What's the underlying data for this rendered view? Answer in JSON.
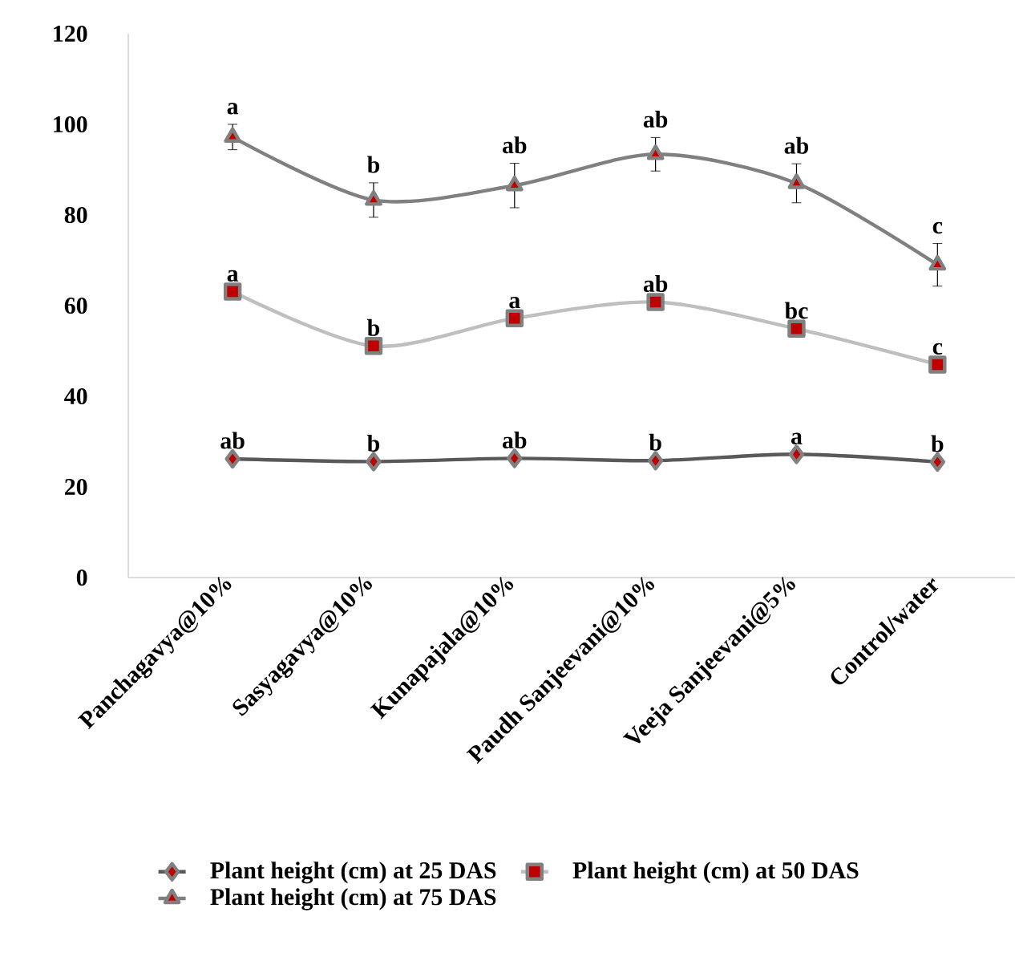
{
  "chart_data": {
    "type": "line",
    "categories": [
      "Panchagavya@10%",
      "Sasyagavya@10%",
      "Kunapajala@10%",
      "Paudh Sanjeevani@10%",
      "Veeja Sanjeevani@5%",
      "Control/water"
    ],
    "series": [
      {
        "name": "Plant height (cm) at 25 DAS",
        "color": "#595959",
        "marker": "diamond",
        "values": [
          26.2,
          25.6,
          26.3,
          25.8,
          27.2,
          25.5
        ]
      },
      {
        "name": "Plant height (cm) at 50 DAS",
        "color": "#bfbfbf",
        "marker": "square",
        "values": [
          63.1,
          51.1,
          57.2,
          60.8,
          54.9,
          47.0
        ]
      },
      {
        "name": "Plant height (cm) at 75 DAS",
        "color": "#808080",
        "marker": "triangle",
        "values": [
          97.2,
          83.3,
          86.5,
          93.4,
          87.0,
          69.0
        ],
        "errors": [
          2.8,
          3.8,
          4.9,
          3.7,
          4.3,
          4.7
        ]
      }
    ],
    "ylim": [
      0,
      120
    ],
    "yticks": [
      0,
      20,
      40,
      60,
      80,
      100,
      120
    ],
    "grid": false,
    "legend": "bottom",
    "line_style": "solid",
    "annotations": [
      {
        "text": "ab",
        "x": "Panchagavya@10%",
        "y": 26.2
      },
      {
        "text": "b",
        "x": "Sasyagavya@10%",
        "y": 25.6
      },
      {
        "text": "ab",
        "x": "Kunapajala@10%",
        "y": 26.3
      },
      {
        "text": "b",
        "x": "Paudh Sanjeevani@10%",
        "y": 25.8
      },
      {
        "text": "a",
        "x": "Veeja Sanjeevani@5%",
        "y": 27.2
      },
      {
        "text": "b",
        "x": "Control/water",
        "y": 25.5
      },
      {
        "text": "a",
        "x": "Panchagavya@10%",
        "y": 63.1
      },
      {
        "text": "b",
        "x": "Sasyagavya@10%",
        "y": 51.1
      },
      {
        "text": "a",
        "x": "Kunapajala@10%",
        "y": 57.2
      },
      {
        "text": "ab",
        "x": "Paudh Sanjeevani@10%",
        "y": 60.8
      },
      {
        "text": "bc",
        "x": "Veeja Sanjeevani@5%",
        "y": 54.9
      },
      {
        "text": "c",
        "x": "Control/water",
        "y": 47.0
      },
      {
        "text": "a",
        "x": "Panchagavya@10%",
        "y": 100.0
      },
      {
        "text": "b",
        "x": "Sasyagavya@10%",
        "y": 87.1
      },
      {
        "text": "ab",
        "x": "Kunapajala@10%",
        "y": 91.4
      },
      {
        "text": "ab",
        "x": "Paudh Sanjeevani@10%",
        "y": 97.1
      },
      {
        "text": "ab",
        "x": "Veeja Sanjeevani@5%",
        "y": 91.3
      },
      {
        "text": "c",
        "x": "Control/water",
        "y": 73.7
      }
    ]
  }
}
